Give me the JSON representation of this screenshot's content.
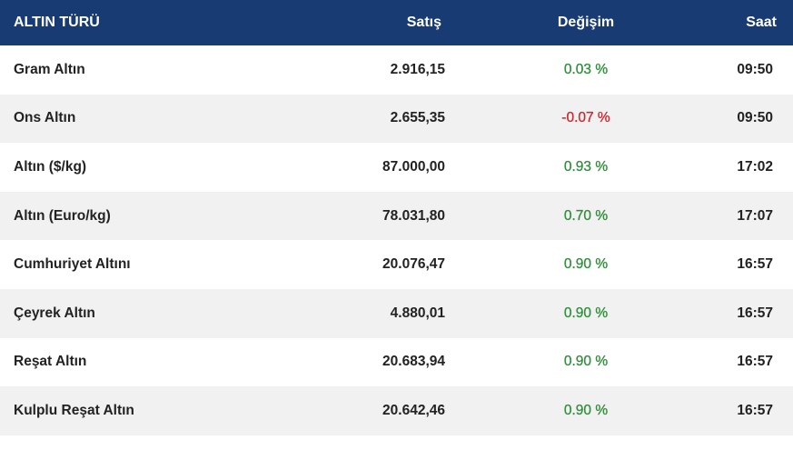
{
  "table": {
    "header": [
      "ALTIN TÜRÜ",
      "Satış",
      "Değişim",
      "Saat"
    ],
    "rows": [
      [
        "Gram Altın",
        "2.916,15",
        "0.03 %",
        "09:50"
      ],
      [
        "Ons Altın",
        "2.655,35",
        "-0.07 %",
        "09:50"
      ],
      [
        "Altın ($/kg)",
        "87.000,00",
        "0.93 %",
        "17:02"
      ],
      [
        "Altın (Euro/kg)",
        "78.031,80",
        "0.70 %",
        "17:07"
      ],
      [
        "Cumhuriyet Altını",
        "20.076,47",
        "0.90 %",
        "16:57"
      ],
      [
        "Çeyrek Altın",
        "4.880,01",
        "0.90 %",
        "16:57"
      ],
      [
        "Reşat Altın",
        "20.683,94",
        "0.90 %",
        "16:57"
      ],
      [
        "Kulplu Reşat Altın",
        "20.642,46",
        "0.90 %",
        "16:57"
      ]
    ],
    "change_colors": [
      "#2f8f3a",
      "#d0262e",
      "#2f8f3a",
      "#2f8f3a",
      "#2f8f3a",
      "#2f8f3a",
      "#2f8f3a",
      "#2f8f3a"
    ]
  }
}
